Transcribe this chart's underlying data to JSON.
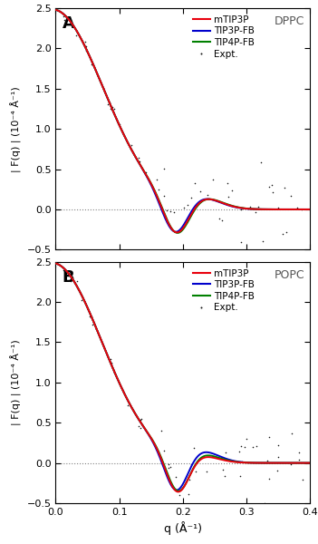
{
  "title_A": "DPPC",
  "title_B": "POPC",
  "xlabel": "q (Å⁻¹)",
  "ylabel": "| F(q) | (10⁻⁴ Å⁻¹)",
  "xlim": [
    0,
    0.4
  ],
  "ylim": [
    -0.5,
    2.5
  ],
  "yticks": [
    -0.5,
    0,
    0.5,
    1.0,
    1.5,
    2.0,
    2.5
  ],
  "xticks": [
    0,
    0.1,
    0.2,
    0.3,
    0.4
  ],
  "legend_labels": [
    "mTIP3P",
    "TIP3P-FB",
    "TIP4P-FB",
    "Expt."
  ],
  "line_colors": [
    "#e8000d",
    "#0000cc",
    "#008000"
  ],
  "expt_color": "#1a1a1a",
  "panel_labels": [
    "A",
    "B"
  ],
  "figsize": [
    3.51,
    6.0
  ],
  "dpi": 100
}
